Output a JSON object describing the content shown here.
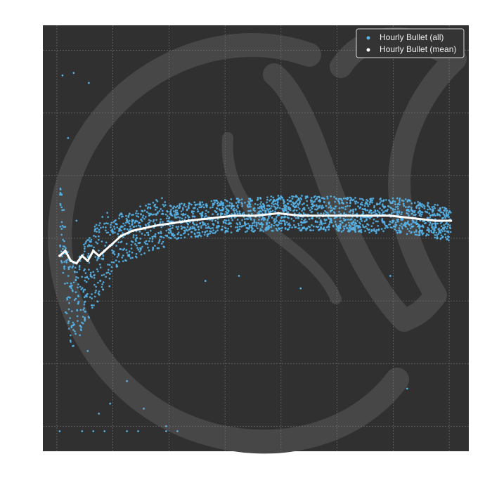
{
  "chart_data": {
    "type": "scatter",
    "title": "",
    "xlabel": "",
    "ylabel": "",
    "grid": true,
    "legend_position": "top-right",
    "xlim": [
      0,
      760
    ],
    "ylim": [
      0,
      170
    ],
    "series": [
      {
        "name": "Hourly Bullet (all)",
        "kind": "scatter",
        "color": "#56b4e9",
        "points": [
          [
            30,
            94
          ],
          [
            35,
            88
          ],
          [
            40,
            73
          ],
          [
            45,
            62
          ],
          [
            55,
            58
          ],
          [
            70,
            64
          ],
          [
            90,
            74
          ],
          [
            110,
            79
          ],
          [
            140,
            85
          ],
          [
            175,
            88
          ],
          [
            210,
            91
          ],
          [
            250,
            92
          ],
          [
            300,
            93
          ],
          [
            350,
            94
          ],
          [
            420,
            95
          ],
          [
            500,
            95
          ],
          [
            580,
            94
          ],
          [
            640,
            94
          ],
          [
            700,
            92
          ],
          [
            728,
            91
          ]
        ],
        "outliers": [
          [
            35,
            150
          ],
          [
            55,
            151
          ],
          [
            82,
            147
          ],
          [
            45,
            125
          ],
          [
            60,
            92
          ],
          [
            80,
            40
          ],
          [
            100,
            15
          ],
          [
            90,
            8
          ],
          [
            120,
            19
          ],
          [
            150,
            28
          ],
          [
            180,
            17
          ],
          [
            220,
            10
          ],
          [
            290,
            68
          ],
          [
            350,
            70
          ],
          [
            460,
            65
          ],
          [
            620,
            70
          ],
          [
            650,
            25
          ],
          [
            30,
            8
          ],
          [
            70,
            8
          ],
          [
            110,
            8
          ],
          [
            150,
            8
          ],
          [
            170,
            8
          ],
          [
            220,
            8
          ],
          [
            240,
            8
          ]
        ]
      },
      {
        "name": "Hourly Bullet (mean)",
        "kind": "line",
        "color": "#ffffff",
        "points": [
          [
            30,
            78
          ],
          [
            40,
            80
          ],
          [
            50,
            76
          ],
          [
            60,
            75
          ],
          [
            70,
            78
          ],
          [
            80,
            76
          ],
          [
            90,
            80
          ],
          [
            100,
            78
          ],
          [
            110,
            80
          ],
          [
            120,
            82
          ],
          [
            140,
            86
          ],
          [
            160,
            88
          ],
          [
            180,
            89
          ],
          [
            200,
            90
          ],
          [
            230,
            91
          ],
          [
            260,
            92
          ],
          [
            300,
            93
          ],
          [
            340,
            94
          ],
          [
            380,
            94
          ],
          [
            420,
            95
          ],
          [
            460,
            94
          ],
          [
            500,
            94
          ],
          [
            540,
            94
          ],
          [
            580,
            94
          ],
          [
            620,
            94
          ],
          [
            660,
            93
          ],
          [
            700,
            92
          ],
          [
            728,
            92
          ]
        ]
      }
    ]
  }
}
